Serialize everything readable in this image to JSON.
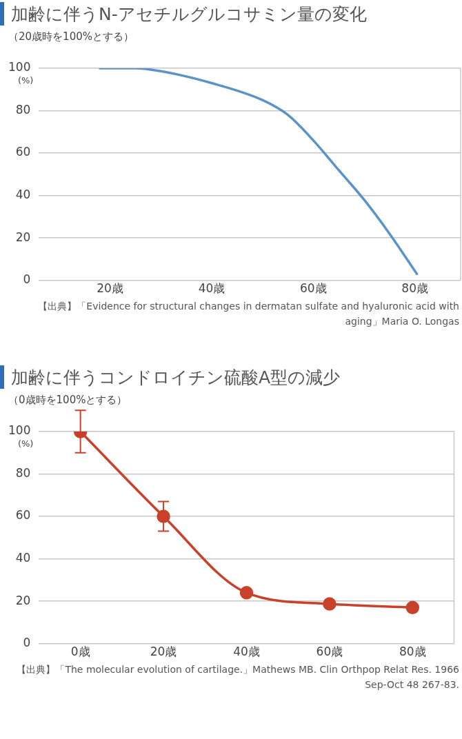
{
  "chart_data": [
    {
      "type": "line",
      "title": "加齢に伴うN-アセチルグルコサミン量の変化",
      "subtitle": "（20歳時を100%とする）",
      "ylabel": "(%)",
      "x": [
        18,
        25,
        30,
        40,
        50,
        55,
        60,
        65,
        70,
        75,
        80.4
      ],
      "series": [
        {
          "color": "#5b93c9",
          "values": [
            100,
            100,
            98.6,
            93,
            85,
            78,
            66,
            52,
            38,
            22,
            3
          ]
        }
      ],
      "xlim": [
        6,
        89
      ],
      "xticks": [
        {
          "value": 20,
          "label": "20歳"
        },
        {
          "value": 40,
          "label": "40歳"
        },
        {
          "value": 60,
          "label": "60歳"
        },
        {
          "value": 80,
          "label": "80歳"
        }
      ],
      "ylim": [
        0,
        100
      ],
      "yticks": [
        0,
        20,
        40,
        60,
        80,
        100
      ],
      "grid": "y",
      "marker": "none",
      "line_style": "solid",
      "annotations": [
        "【出典】「Evidence for structural changes in dermatan sulfate and hyaluronic acid with aging」Maria O. Longas"
      ]
    },
    {
      "type": "line",
      "title": "加齢に伴うコンドロイチン硫酸A型の減少",
      "subtitle": "（0歳時を100%とする）",
      "ylabel": "(%)",
      "categories": [
        "0歳",
        "20歳",
        "40歳",
        "60歳",
        "80歳"
      ],
      "series": [
        {
          "color": "#c8412a",
          "values": [
            100,
            60,
            24,
            18.7,
            17
          ],
          "errors": [
            [
              90,
              110
            ],
            [
              53,
              67
            ],
            null,
            null,
            null
          ]
        }
      ],
      "ylim": [
        0,
        100
      ],
      "yticks": [
        0,
        20,
        40,
        60,
        80,
        100
      ],
      "grid": "y",
      "marker": "circle",
      "line_style": "solid",
      "annotations": [
        "【出典】「The molecular evolution of cartilage.」Mathews MB. Clin Orthpop Relat Res. 1966 Sep-Oct 48 267-83."
      ]
    }
  ]
}
